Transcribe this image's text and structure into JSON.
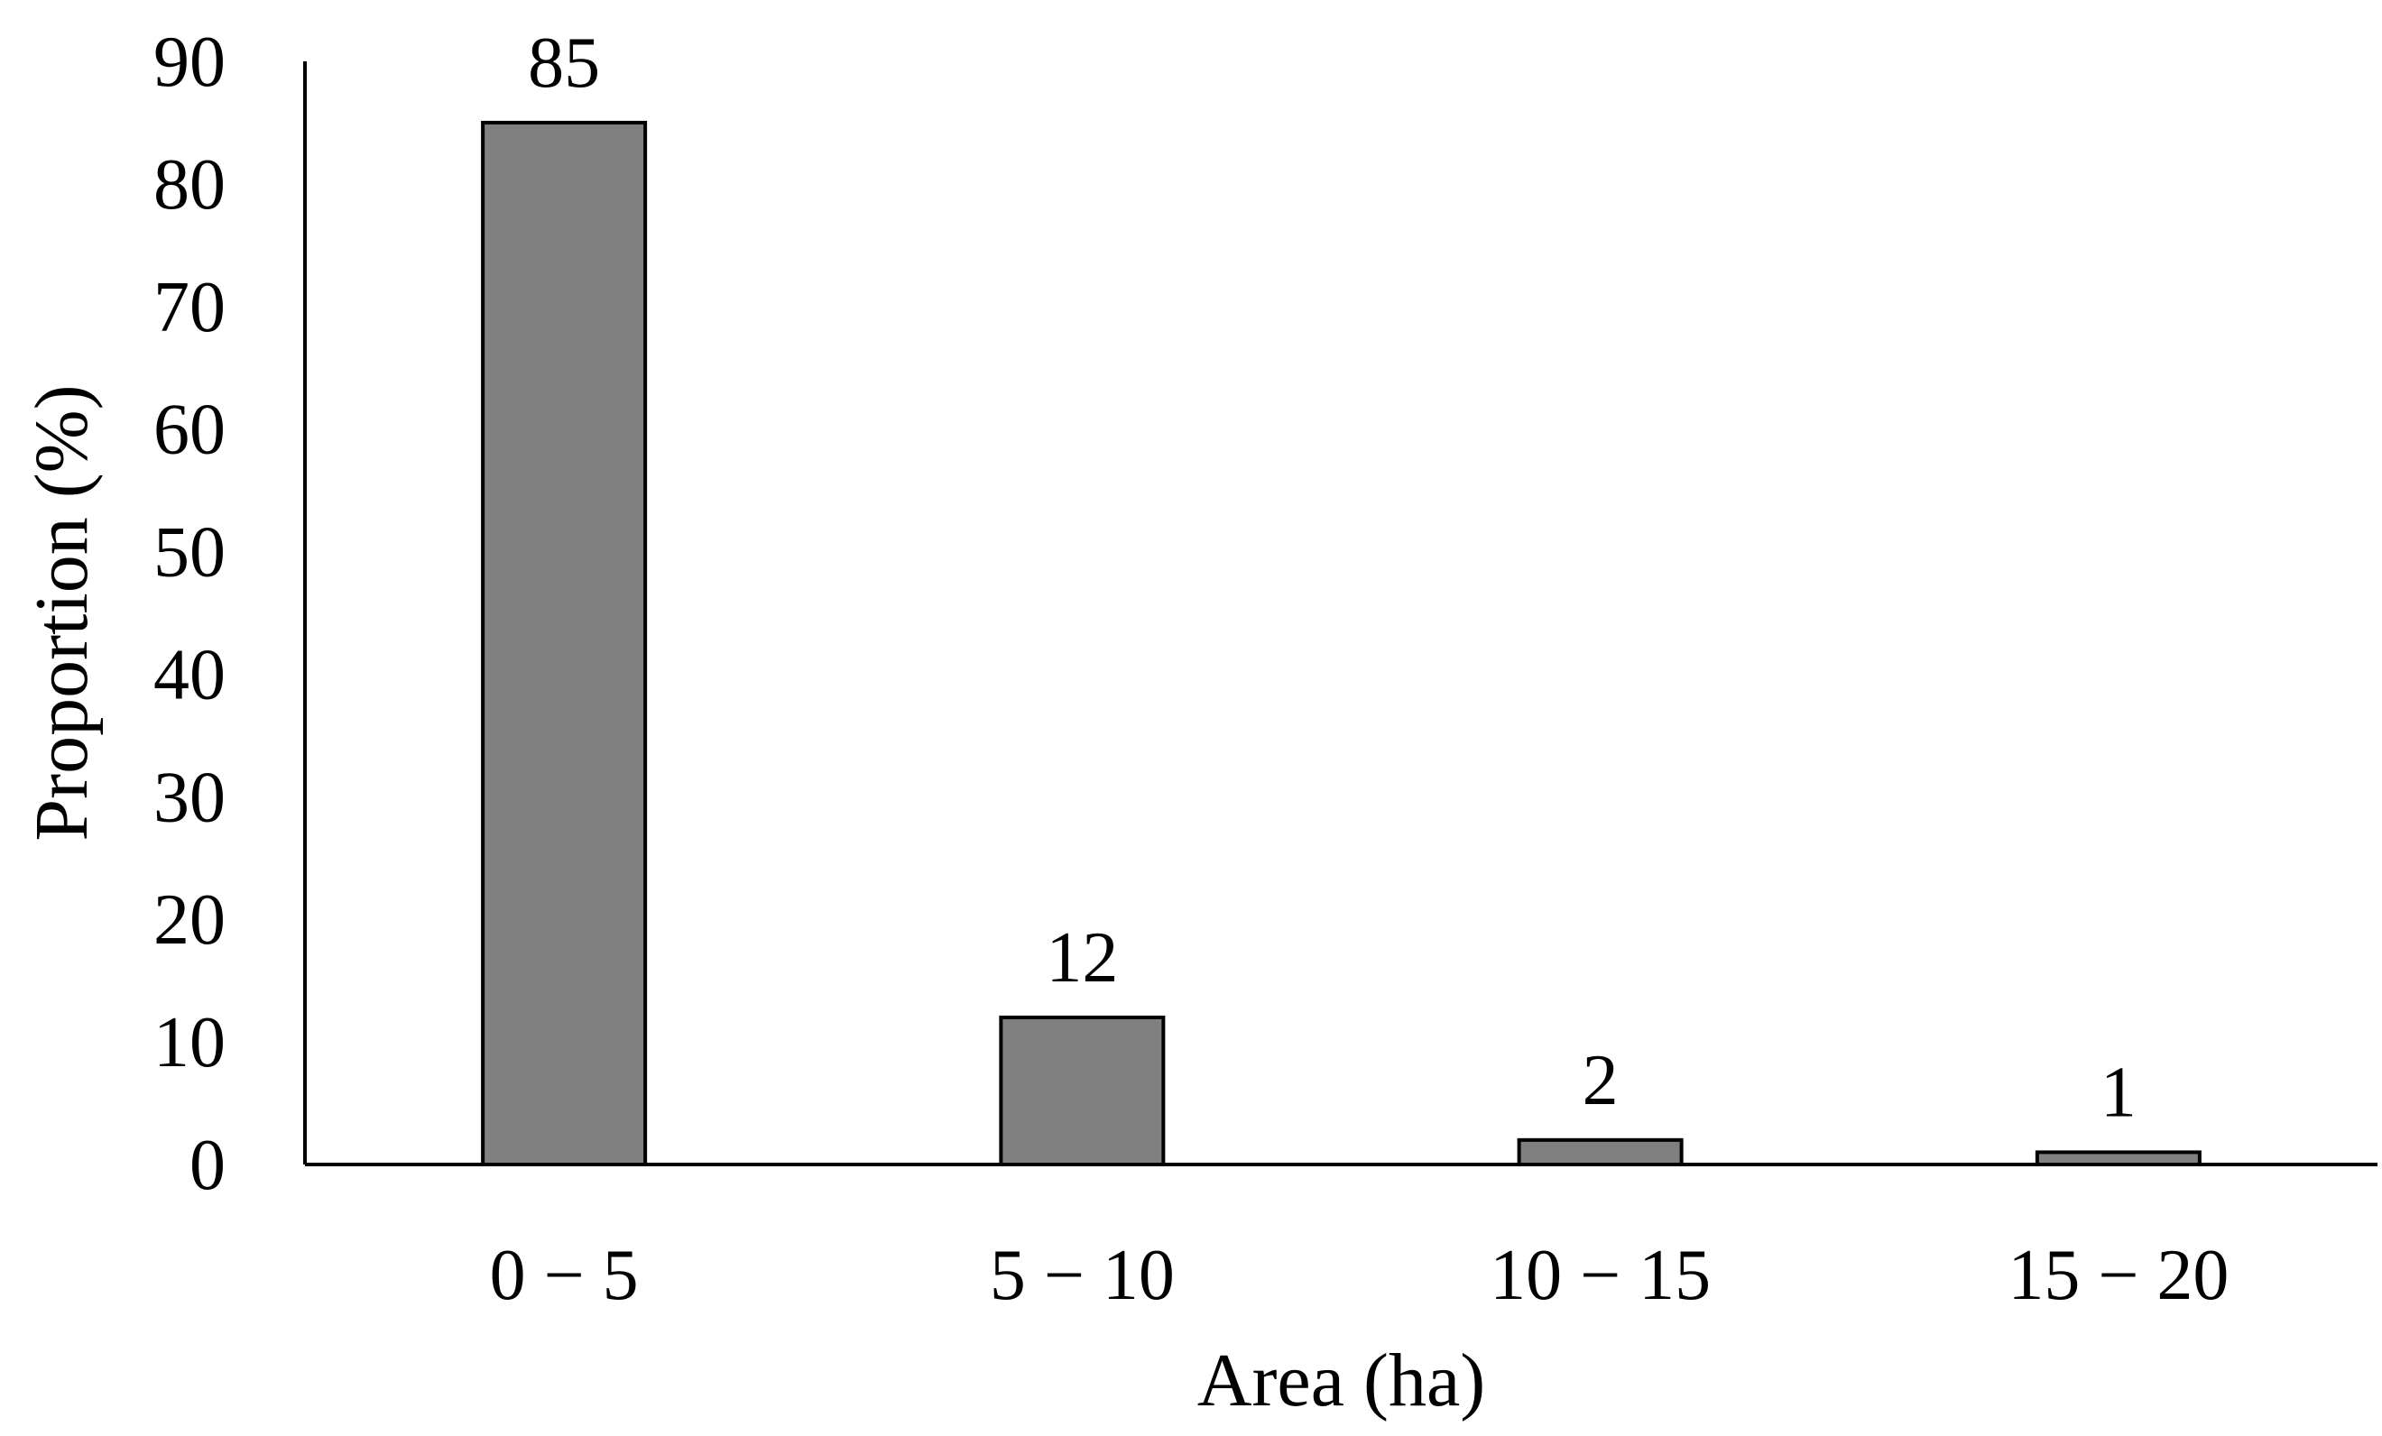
{
  "chart_data": {
    "type": "bar",
    "categories": [
      "0 − 5",
      "5 − 10",
      "10 − 15",
      "15 − 20"
    ],
    "values": [
      85,
      12,
      2,
      1
    ],
    "data_labels": [
      "85",
      "12",
      "2",
      "1"
    ],
    "xlabel": "Area (ha)",
    "ylabel": "Proportion (%)",
    "ylim": [
      0,
      90
    ],
    "yticks": [
      0,
      10,
      20,
      30,
      40,
      50,
      60,
      70,
      80,
      90
    ],
    "grid": false,
    "legend": "none",
    "colors": {
      "bar_fill": "#808080",
      "bar_stroke": "#000000",
      "axis": "#000000"
    }
  }
}
